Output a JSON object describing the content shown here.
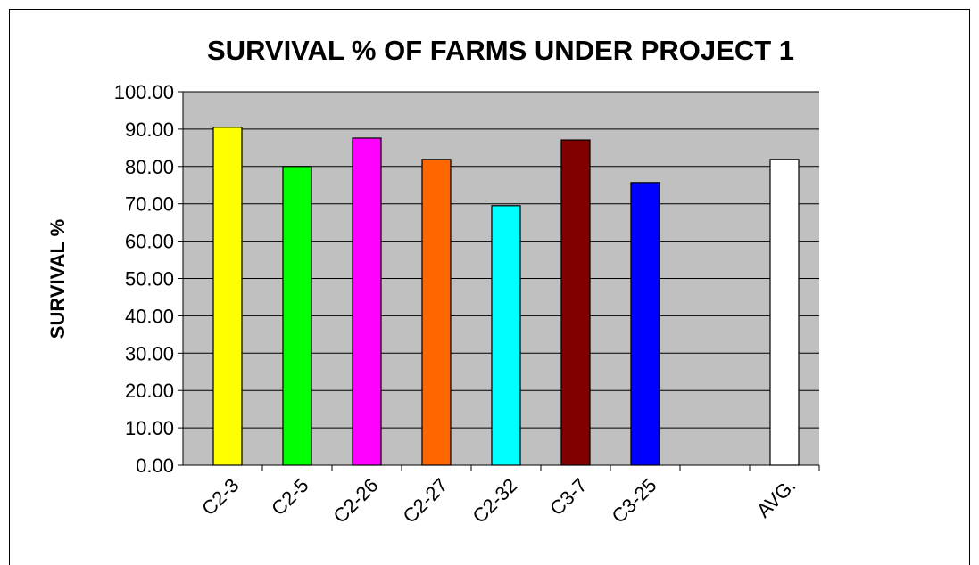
{
  "chart_data": {
    "type": "bar",
    "title": "SURVIVAL % OF FARMS UNDER PROJECT 1",
    "y_label": "SURVIVAL %",
    "categories": [
      "C2-3",
      "C2-5",
      "C2-26",
      "C2-27",
      "C2-32",
      "C3-7",
      "C3-25",
      null,
      "AVG."
    ],
    "values": [
      90.5,
      80,
      87.6,
      81.9,
      69.5,
      87.1,
      75.7,
      null,
      81.9
    ],
    "colors": [
      "#ffff00",
      "#00ff00",
      "#ff00ff",
      "#ff6600",
      "#00ffff",
      "#800000",
      "#0000ff",
      null,
      "#ffffff"
    ],
    "ylim": [
      0,
      100
    ],
    "yticks": [
      {
        "value": 0,
        "label": "0.00"
      },
      {
        "value": 10,
        "label": "10.00"
      },
      {
        "value": 20,
        "label": "20.00"
      },
      {
        "value": 30,
        "label": "30.00"
      },
      {
        "value": 40,
        "label": "40.00"
      },
      {
        "value": 50,
        "label": "50.00"
      },
      {
        "value": 60,
        "label": "60.00"
      },
      {
        "value": 70,
        "label": "70.00"
      },
      {
        "value": 80,
        "label": "80.00"
      },
      {
        "value": 90,
        "label": "90.00"
      },
      {
        "value": 100,
        "label": "100.00"
      }
    ],
    "grid": true,
    "plot_background": "#c0c0c0"
  }
}
